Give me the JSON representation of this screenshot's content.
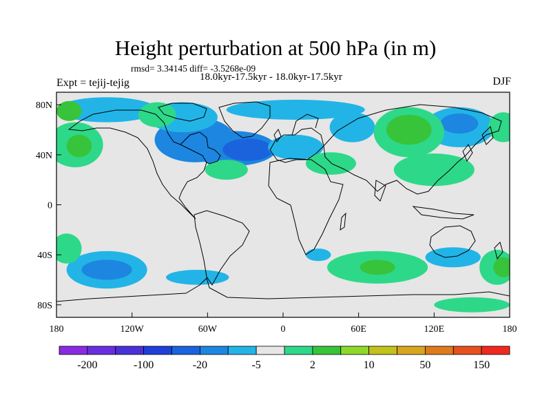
{
  "header": {
    "title": "Height perturbation at 500 hPa (in m)",
    "stats": "rmsd= 3.34145 diff= -3.5268e-09",
    "periods": "18.0kyr-17.5kyr - 18.0kyr-17.5kyr",
    "experiment": "Expt = tejij-tejig",
    "season": "DJF"
  },
  "chart_data": {
    "type": "heatmap",
    "title": "Height perturbation at 500 hPa (in m)",
    "xlabel": "",
    "ylabel": "",
    "xlim": [
      -180,
      180
    ],
    "ylim": [
      -90,
      90
    ],
    "x_ticks": [
      {
        "value": -180,
        "label": "180"
      },
      {
        "value": -120,
        "label": "120W"
      },
      {
        "value": -60,
        "label": "60W"
      },
      {
        "value": 0,
        "label": "0"
      },
      {
        "value": 60,
        "label": "60E"
      },
      {
        "value": 120,
        "label": "120E"
      },
      {
        "value": 180,
        "label": "180"
      }
    ],
    "y_ticks": [
      {
        "value": 80,
        "label": "80N"
      },
      {
        "value": 40,
        "label": "40N"
      },
      {
        "value": 0,
        "label": "0"
      },
      {
        "value": -40,
        "label": "40S"
      },
      {
        "value": -80,
        "label": "80S"
      }
    ],
    "colorbar": {
      "colors": [
        "#8a2be2",
        "#6a2ee0",
        "#4a30d8",
        "#1f3fd9",
        "#1a63dd",
        "#1c86e0",
        "#22b4e6",
        "#e6e6e6",
        "#2ed889",
        "#37c43a",
        "#8ed82a",
        "#c2c21e",
        "#d8a61e",
        "#e07a1e",
        "#e6501e",
        "#ee2a1e"
      ],
      "tick_labels": [
        {
          "after_box": 1,
          "label": "-200"
        },
        {
          "after_box": 3,
          "label": "-100"
        },
        {
          "after_box": 5,
          "label": "-20"
        },
        {
          "after_box": 7,
          "label": "-5"
        },
        {
          "after_box": 9,
          "label": "2"
        },
        {
          "after_box": 11,
          "label": "10"
        },
        {
          "after_box": 13,
          "label": "50"
        },
        {
          "after_box": 15,
          "label": "150"
        }
      ]
    },
    "level_colors": {
      "-20": "#1a63dd",
      "-10": "#1c86e0",
      "-5": "#22b4e6",
      "0": "#e6e6e6",
      "5": "#2ed889",
      "10": "#37c43a",
      "20": "#8ed82a"
    },
    "anomalies": [
      {
        "lon": -70,
        "lat": 52,
        "rlon": 32,
        "rlat": 18,
        "value": -10
      },
      {
        "lon": -40,
        "lat": 45,
        "rlon": 35,
        "rlat": 14,
        "value": -10
      },
      {
        "lon": -28,
        "lat": 44,
        "rlon": 20,
        "rlat": 9,
        "value": -20
      },
      {
        "lon": -80,
        "lat": 70,
        "rlon": 28,
        "rlat": 12,
        "value": -5
      },
      {
        "lon": -140,
        "lat": 76,
        "rlon": 40,
        "rlat": 10,
        "value": -5
      },
      {
        "lon": 10,
        "lat": 76,
        "rlon": 55,
        "rlat": 8,
        "value": -5
      },
      {
        "lon": 55,
        "lat": 62,
        "rlon": 18,
        "rlat": 12,
        "value": -5
      },
      {
        "lon": 10,
        "lat": 46,
        "rlon": 22,
        "rlat": 10,
        "value": -5
      },
      {
        "lon": 140,
        "lat": 62,
        "rlon": 28,
        "rlat": 16,
        "value": -5
      },
      {
        "lon": 140,
        "lat": 65,
        "rlon": 15,
        "rlat": 8,
        "value": -10
      },
      {
        "lon": -165,
        "lat": 48,
        "rlon": 22,
        "rlat": 18,
        "value": 5
      },
      {
        "lon": -162,
        "lat": 47,
        "rlon": 10,
        "rlat": 9,
        "value": 10
      },
      {
        "lon": -100,
        "lat": 72,
        "rlon": 15,
        "rlat": 10,
        "value": 5
      },
      {
        "lon": -45,
        "lat": 28,
        "rlon": 17,
        "rlat": 8,
        "value": 5
      },
      {
        "lon": 38,
        "lat": 33,
        "rlon": 20,
        "rlat": 9,
        "value": 5
      },
      {
        "lon": 100,
        "lat": 58,
        "rlon": 28,
        "rlat": 20,
        "value": 5
      },
      {
        "lon": 100,
        "lat": 60,
        "rlon": 18,
        "rlat": 12,
        "value": 10
      },
      {
        "lon": 120,
        "lat": 28,
        "rlon": 32,
        "rlat": 13,
        "value": 5
      },
      {
        "lon": 175,
        "lat": 62,
        "rlon": 12,
        "rlat": 12,
        "value": 5
      },
      {
        "lon": -170,
        "lat": 75,
        "rlon": 10,
        "rlat": 8,
        "value": 10
      },
      {
        "lon": -140,
        "lat": -52,
        "rlon": 32,
        "rlat": 15,
        "value": -5
      },
      {
        "lon": -140,
        "lat": -52,
        "rlon": 20,
        "rlat": 8,
        "value": -10
      },
      {
        "lon": -172,
        "lat": -35,
        "rlon": 12,
        "rlat": 12,
        "value": 5
      },
      {
        "lon": -68,
        "lat": -58,
        "rlon": 25,
        "rlat": 6,
        "value": -5
      },
      {
        "lon": 28,
        "lat": -40,
        "rlon": 10,
        "rlat": 5,
        "value": -5
      },
      {
        "lon": 75,
        "lat": -50,
        "rlon": 40,
        "rlat": 13,
        "value": 5
      },
      {
        "lon": 75,
        "lat": -50,
        "rlon": 14,
        "rlat": 6,
        "value": 10
      },
      {
        "lon": 135,
        "lat": -42,
        "rlon": 22,
        "rlat": 8,
        "value": -5
      },
      {
        "lon": 170,
        "lat": -50,
        "rlon": 14,
        "rlat": 14,
        "value": 5
      },
      {
        "lon": 175,
        "lat": -50,
        "rlon": 8,
        "rlat": 8,
        "value": 10
      },
      {
        "lon": 150,
        "lat": -80,
        "rlon": 30,
        "rlat": 6,
        "value": 5
      }
    ]
  }
}
